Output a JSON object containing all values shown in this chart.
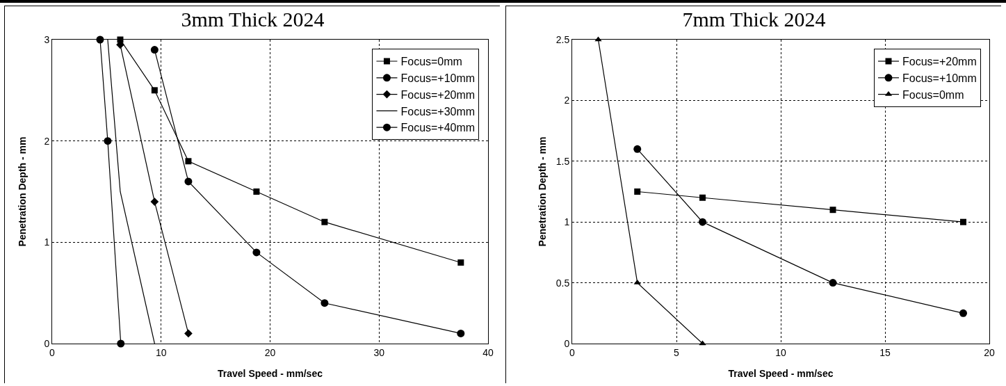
{
  "chart_data": [
    {
      "type": "line",
      "title": "3mm Thick 2024",
      "xlabel": "Travel Speed - mm/sec",
      "ylabel": "Penetration Depth - mm",
      "xlim": [
        0,
        40
      ],
      "xticks": [
        0,
        10,
        20,
        30,
        40
      ],
      "ylim": [
        0,
        3
      ],
      "yticks": [
        0,
        1,
        2,
        3
      ],
      "grid": true,
      "legend": "top right",
      "line_style": "solid",
      "series": [
        {
          "name": "Focus=0mm",
          "color": "#000000",
          "marker": "square",
          "x": [
            6.25,
            9.4,
            12.5,
            18.75,
            25,
            37.5
          ],
          "values": [
            3,
            2.5,
            1.8,
            1.5,
            1.2,
            0.8
          ]
        },
        {
          "name": "Focus=+10mm",
          "color": "#000000",
          "marker": "circle",
          "x": [
            9.4,
            12.5,
            18.75,
            25,
            37.5
          ],
          "values": [
            2.9,
            1.6,
            0.9,
            0.4,
            0.1
          ]
        },
        {
          "name": "Focus=+20mm",
          "color": "#000000",
          "marker": "diamond",
          "x": [
            6.25,
            9.4,
            12.5
          ],
          "values": [
            2.95,
            1.4,
            0.1
          ]
        },
        {
          "name": "Focus=+30mm",
          "color": "#000000",
          "marker": "none",
          "x": [
            5.1,
            6.25,
            9.4
          ],
          "values": [
            3,
            1.5,
            0
          ]
        },
        {
          "name": "Focus=+40mm",
          "color": "#000000",
          "marker": "circle",
          "x": [
            4.4,
            5.1,
            6.3
          ],
          "values": [
            3,
            2,
            0
          ]
        }
      ]
    },
    {
      "type": "line",
      "title": "7mm Thick 2024",
      "xlabel": "Travel Speed - mm/sec",
      "ylabel": "Penetration Depth - mm",
      "xlim": [
        0,
        20
      ],
      "xticks": [
        0,
        5,
        10,
        15,
        20
      ],
      "ylim": [
        0,
        2.5
      ],
      "yticks": [
        0,
        0.5,
        1,
        1.5,
        2,
        2.5
      ],
      "grid": true,
      "legend": "top right",
      "line_style": "solid",
      "series": [
        {
          "name": "Focus=+20mm",
          "color": "#000000",
          "marker": "square",
          "x": [
            3.125,
            6.25,
            12.5,
            18.75
          ],
          "values": [
            1.25,
            1.2,
            1.1,
            1
          ]
        },
        {
          "name": "Focus=+10mm",
          "color": "#000000",
          "marker": "circle",
          "x": [
            3.125,
            6.25,
            12.5,
            18.75
          ],
          "values": [
            1.6,
            1,
            0.5,
            0.25
          ]
        },
        {
          "name": "Focus=0mm",
          "color": "#000000",
          "marker": "triangle",
          "x": [
            1.25,
            3.125,
            6.25
          ],
          "values": [
            2.5,
            0.5,
            0
          ]
        }
      ]
    }
  ]
}
